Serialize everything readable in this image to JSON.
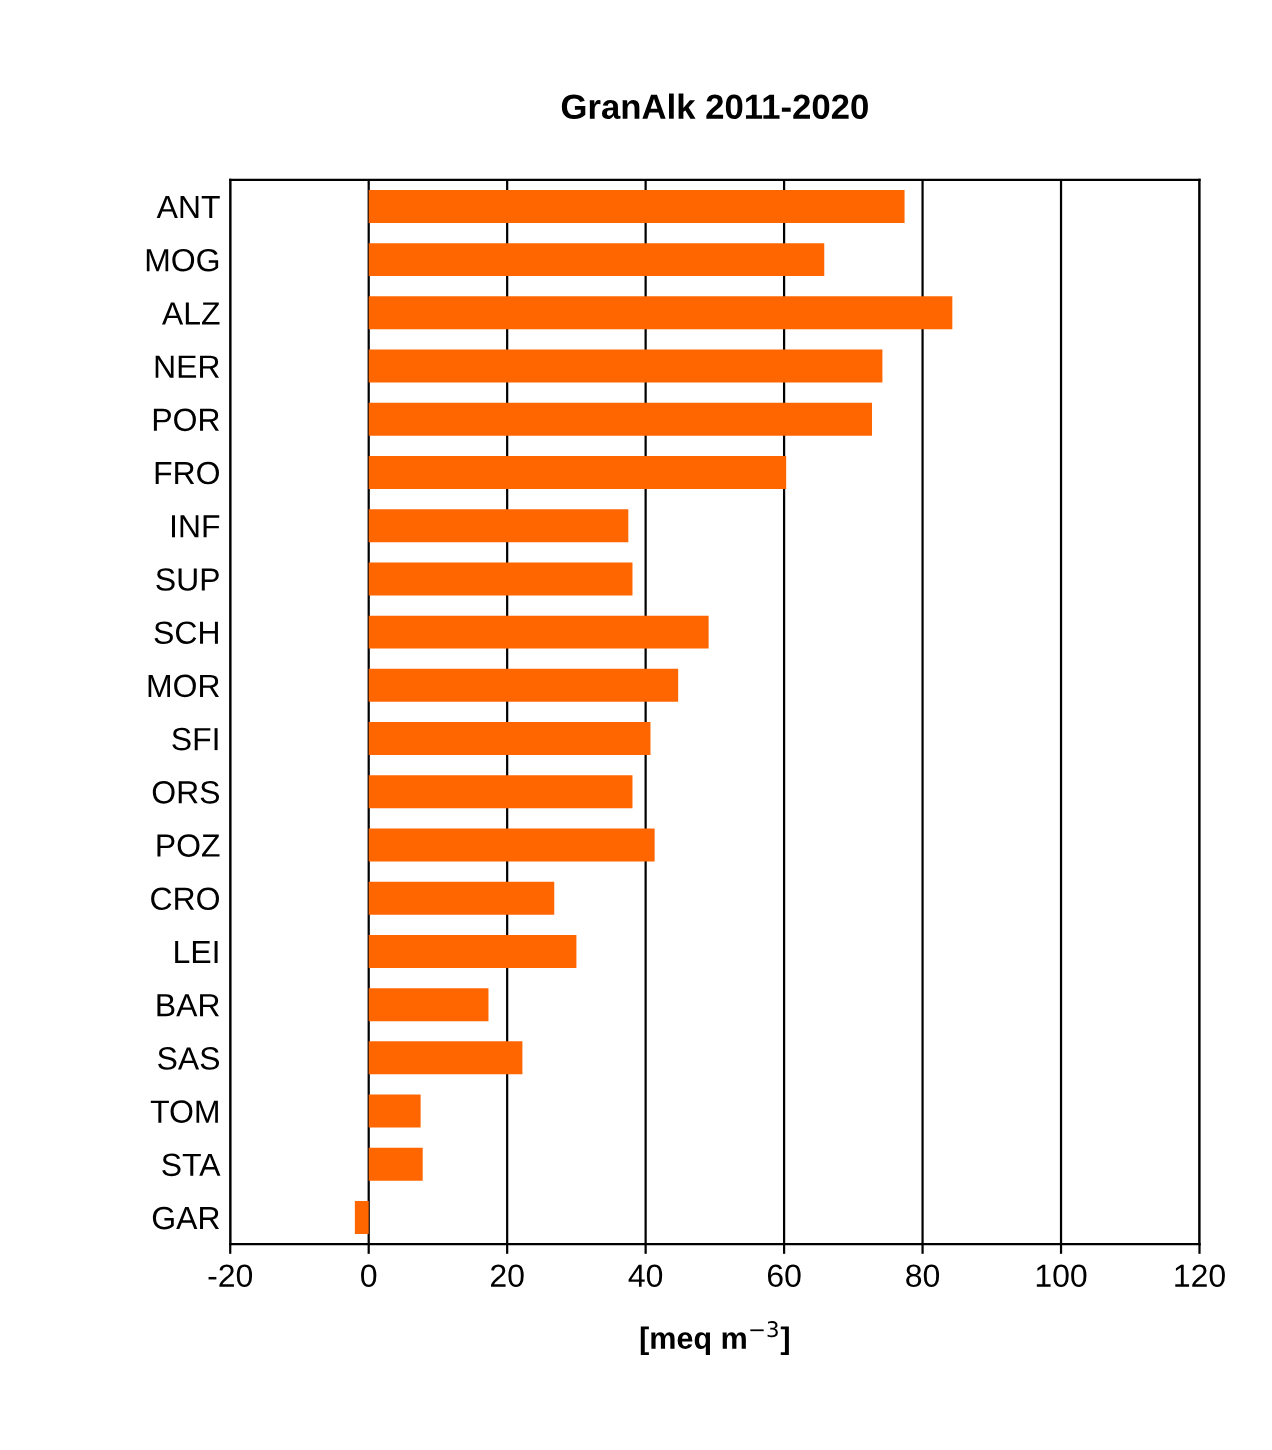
{
  "chart_data": {
    "type": "bar",
    "orientation": "horizontal",
    "title": "GranAlk 2011-2020",
    "xlabel": "[meq m$^{−3}$]",
    "categories": [
      "ANT",
      "MOG",
      "ALZ",
      "NER",
      "POR",
      "FRO",
      "INF",
      "SUP",
      "SCH",
      "MOR",
      "SFI",
      "ORS",
      "POZ",
      "CRO",
      "LEI",
      "BAR",
      "SAS",
      "TOM",
      "STA",
      "GAR"
    ],
    "values": [
      77.4,
      65.8,
      84.3,
      74.2,
      72.7,
      60.3,
      37.5,
      38.1,
      49.1,
      44.7,
      40.7,
      38.1,
      41.3,
      26.8,
      30.0,
      17.3,
      22.2,
      7.5,
      7.8,
      -2.0
    ],
    "color": "#ff6600",
    "xlim": [
      -20,
      120
    ],
    "xticks": [
      -20,
      0,
      20,
      40,
      60,
      80,
      100,
      120
    ],
    "grid": "x"
  }
}
